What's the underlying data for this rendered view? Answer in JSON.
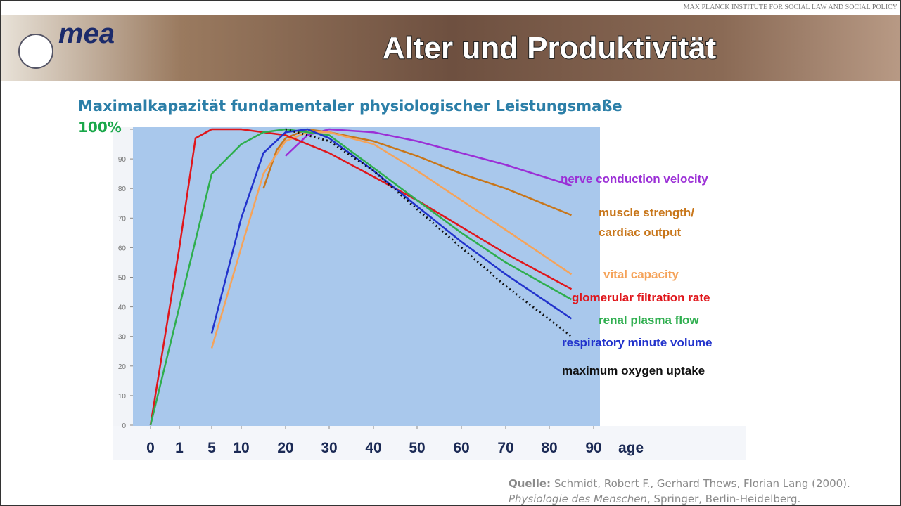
{
  "header": {
    "institute": "MAX PLANCK INSTITUTE FOR SOCIAL LAW AND SOCIAL POLICY",
    "logo": "mea",
    "title": "Alter und Produktivität"
  },
  "chart_data": {
    "type": "line",
    "title": "Maximalkapazität fundamentaler physiologischer Leistungsmaße",
    "x_label": "age",
    "xlim": [
      0,
      90
    ],
    "xticks": [
      0,
      1,
      5,
      10,
      20,
      30,
      40,
      50,
      60,
      70,
      80,
      90
    ],
    "ylim": [
      0,
      100
    ],
    "yticks": [
      0,
      10,
      20,
      30,
      40,
      50,
      60,
      70,
      80,
      90,
      {
        "value": 100,
        "label": "100%"
      }
    ],
    "series": [
      {
        "name": "nerve conduction velocity",
        "color": "#9b2fd6",
        "x": [
          20,
          25,
          30,
          40,
          50,
          60,
          70,
          85
        ],
        "values": [
          91,
          98,
          100,
          99,
          96,
          92,
          88,
          81
        ]
      },
      {
        "name": "muscle strength/ cardiac output",
        "color": "#c8761a",
        "x": [
          15,
          18,
          20,
          25,
          30,
          40,
          50,
          60,
          70,
          85
        ],
        "values": [
          80,
          93,
          97,
          100,
          99,
          96,
          91,
          85,
          80,
          71
        ]
      },
      {
        "name": "vital capacity",
        "color": "#f5a35a",
        "x": [
          5,
          10,
          15,
          20,
          25,
          30,
          40,
          50,
          60,
          70,
          85
        ],
        "values": [
          26,
          60,
          85,
          96,
          99,
          99,
          95,
          86,
          76,
          66,
          51
        ]
      },
      {
        "name": "glomerular filtration rate",
        "color": "#e0161b",
        "x": [
          0,
          1,
          3,
          5,
          10,
          20,
          30,
          40,
          50,
          60,
          70,
          85
        ],
        "values": [
          0,
          60,
          97,
          100,
          100,
          98,
          92,
          84,
          76,
          67,
          58,
          46
        ]
      },
      {
        "name": "renal plasma flow",
        "color": "#2eae4e",
        "x": [
          0,
          1,
          5,
          10,
          15,
          20,
          30,
          40,
          50,
          60,
          70,
          85
        ],
        "values": [
          0,
          40,
          85,
          95,
          99,
          100,
          98,
          87,
          76,
          65,
          55,
          42.5
        ]
      },
      {
        "name": "respiratory minute volume",
        "color": "#2233cc",
        "x": [
          5,
          10,
          15,
          20,
          25,
          30,
          40,
          50,
          60,
          70,
          85
        ],
        "values": [
          31,
          70,
          92,
          99,
          100,
          97,
          86,
          74,
          62,
          51,
          36
        ]
      },
      {
        "name": "maximum oxygen uptake",
        "color": "#111111",
        "dashed": true,
        "x": [
          20,
          30,
          40,
          50,
          60,
          70,
          85
        ],
        "values": [
          100,
          96,
          86,
          73,
          60,
          47,
          30
        ]
      }
    ]
  },
  "source": {
    "label": "Quelle:",
    "line1": "Schmidt, Robert F., Gerhard Thews, Florian Lang (2000).",
    "book": "Physiologie des Menschen",
    "line2": ", Springer, Berlin-Heidelberg."
  }
}
